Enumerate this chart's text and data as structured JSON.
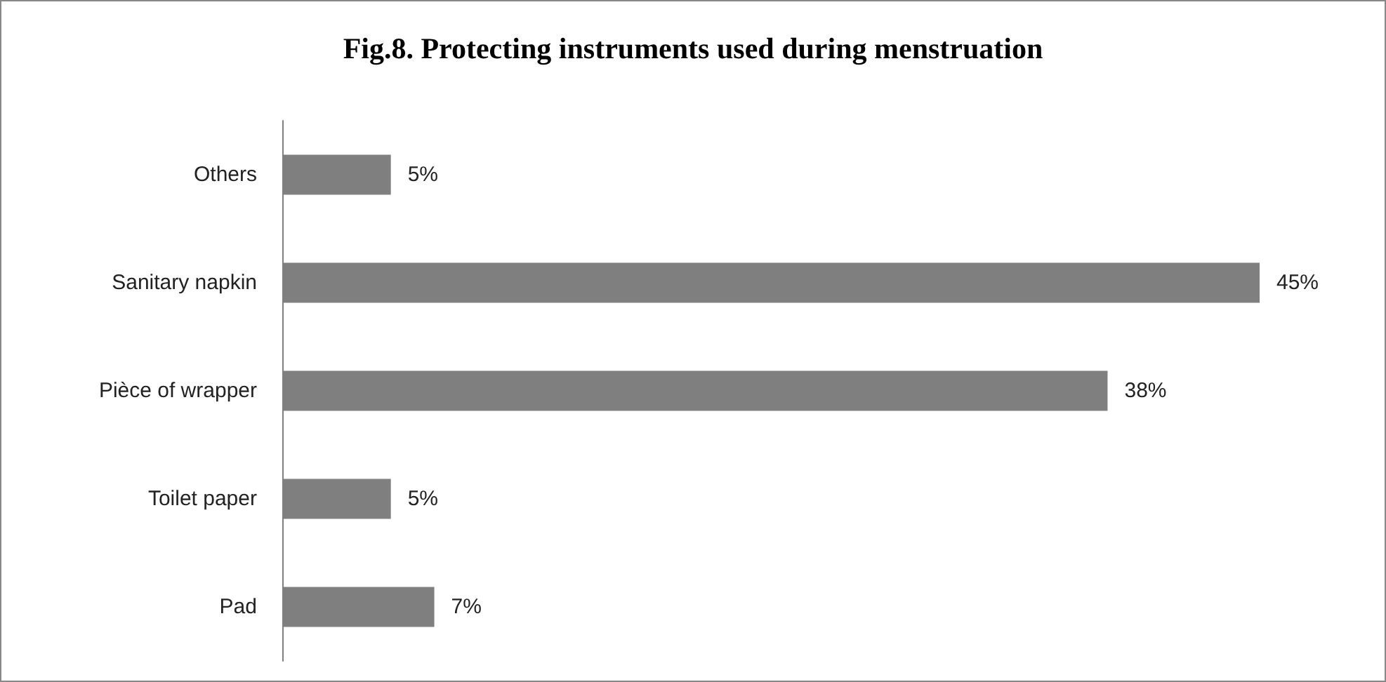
{
  "chart_data": {
    "type": "bar",
    "orientation": "horizontal",
    "title": "Fig.8. Protecting instruments used during menstruation",
    "categories": [
      "Others",
      "Sanitary napkin",
      "Pièce of wrapper",
      "Toilet paper",
      "Pad"
    ],
    "values": [
      5,
      45,
      38,
      5,
      7
    ],
    "value_labels": [
      "5%",
      "45%",
      "38%",
      "5%",
      "7%"
    ],
    "color": "#7f7f7f"
  }
}
